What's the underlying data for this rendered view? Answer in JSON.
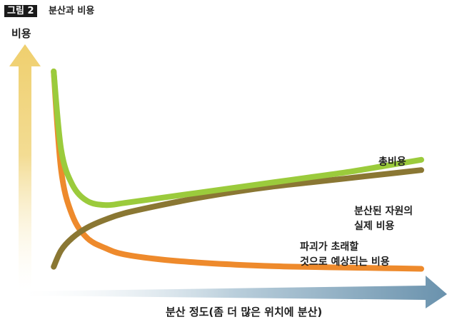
{
  "figure": {
    "badge": "그림 2",
    "caption": "분산과 비용"
  },
  "chart_data": {
    "type": "line",
    "title": "분산과 비용",
    "xlabel": "분산 정도(좀 더 많은 위치에 분산)",
    "ylabel": "비용",
    "xlim": [
      0,
      100
    ],
    "ylim": [
      0,
      100
    ],
    "grid": false,
    "legend": "inline labels at line ends",
    "x": [
      1,
      3,
      6,
      10,
      15,
      20,
      30,
      40,
      50,
      60,
      70,
      80,
      90,
      100
    ],
    "series": [
      {
        "name": "총비용",
        "label_lines": [
          "총비용"
        ],
        "color": "#9bcb3c",
        "values": [
          100,
          62,
          45,
          37,
          35,
          36,
          38.5,
          41,
          43.5,
          46,
          48.5,
          51,
          54,
          57
        ]
      },
      {
        "name": "분산된 자원의 실제 비용",
        "label_lines": [
          "분산된 자원의",
          "실제 비용"
        ],
        "color": "#8a7733",
        "values": [
          5,
          13,
          19,
          24,
          28,
          31,
          35,
          38.5,
          41.5,
          44,
          46,
          48,
          50,
          52
        ]
      },
      {
        "name": "파괴가 초래할 것으로 예상되는 비용",
        "label_lines": [
          "파괴가 초래할",
          "것으로 예상되는 비용"
        ],
        "color": "#ee8a2c",
        "values": [
          100,
          52,
          30,
          19,
          14,
          11,
          8.5,
          7,
          6,
          5.3,
          4.9,
          4.6,
          4.3,
          4
        ]
      }
    ]
  },
  "colors": {
    "y_arrow": "#efd37a",
    "x_arrow": "#6f96b0",
    "badge_bg": "#1a1a1a"
  }
}
